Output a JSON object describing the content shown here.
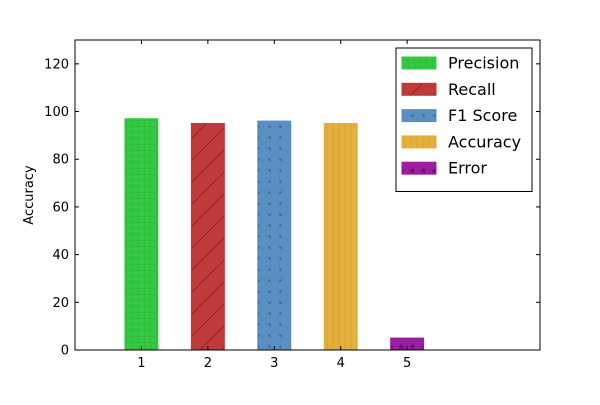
{
  "chart_data": {
    "type": "bar",
    "title": "",
    "xlabel": "",
    "ylabel": "Accuracy",
    "categories": [
      "1",
      "2",
      "3",
      "4",
      "5"
    ],
    "x": [
      1,
      2,
      3,
      4,
      5
    ],
    "xlim": [
      0,
      7
    ],
    "ylim": [
      0,
      130
    ],
    "yticks": [
      0,
      20,
      40,
      60,
      80,
      100,
      120
    ],
    "grid": false,
    "legend_position": "top-right",
    "series": [
      {
        "name": "Precision",
        "x": 1,
        "value": 97,
        "color": "#2ecc40",
        "hatch": "grid"
      },
      {
        "name": "Recall",
        "x": 2,
        "value": 95,
        "color": "#c0393b",
        "hatch": "diagonal"
      },
      {
        "name": "F1 Score",
        "x": 3,
        "value": 96,
        "color": "#5b8fc2",
        "hatch": "dots"
      },
      {
        "name": "Accuracy",
        "x": 4,
        "value": 95,
        "color": "#e3b03e",
        "hatch": "vertical"
      },
      {
        "name": "Error",
        "x": 5,
        "value": 5,
        "color": "#9b1fa3",
        "hatch": "stars"
      }
    ]
  }
}
